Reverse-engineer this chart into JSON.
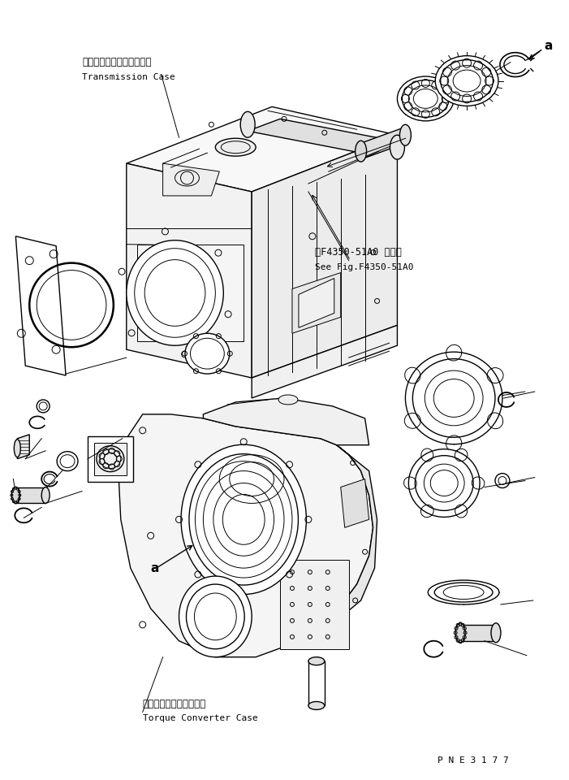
{
  "bg_color": "#ffffff",
  "line_color": "#000000",
  "label_transmission_jp": "トランスミッションケース",
  "label_transmission_en": "Transmission Case",
  "label_torque_jp": "トルクコンバータケース",
  "label_torque_en": "Torque Converter Case",
  "label_fig_jp": "第F4350-51A0 図参照",
  "label_fig_en": "See Fig.F4350-51A0",
  "label_pne": "P N E 3 1 7 7",
  "label_a": "a",
  "figsize": [
    7.01,
    9.6
  ],
  "dpi": 100
}
